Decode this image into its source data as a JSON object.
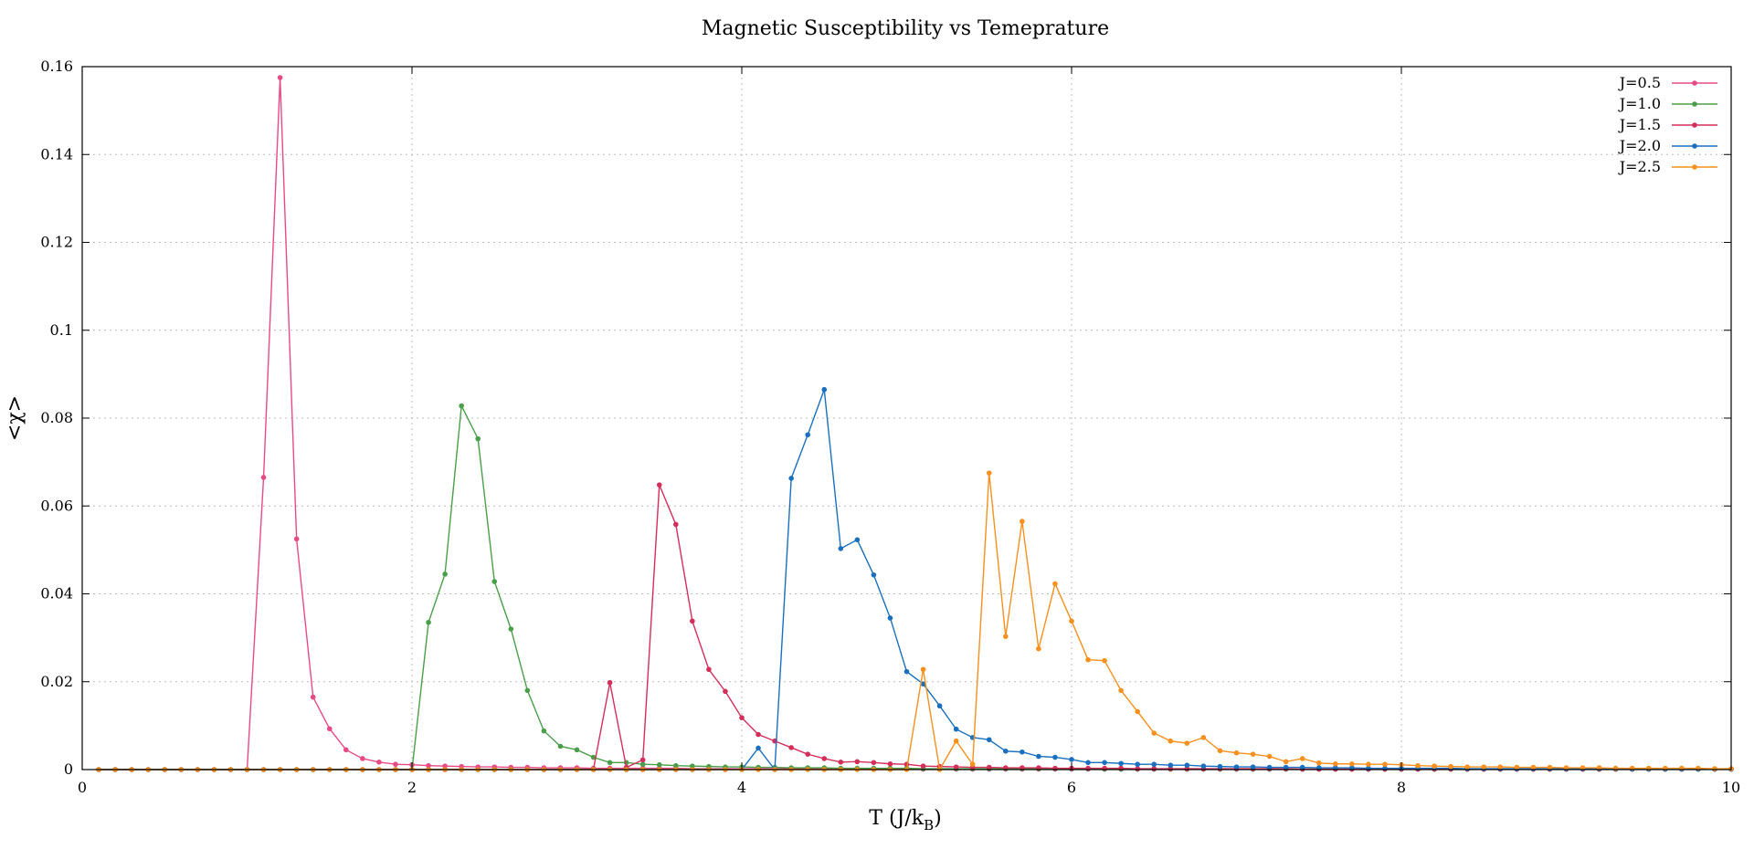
{
  "chart_data": {
    "type": "line",
    "title": "Magnetic Susceptibility vs Temeprature",
    "xlabel": {
      "main": "T (J/k",
      "sub": "B",
      "close": ")"
    },
    "ylabel": "<χ>",
    "xlim": [
      0,
      10
    ],
    "ylim": [
      0,
      0.16
    ],
    "xticks": [
      0,
      2,
      4,
      6,
      8,
      10
    ],
    "yticks": [
      0,
      0.02,
      0.04,
      0.06,
      0.08,
      0.1,
      0.12,
      0.14,
      0.16
    ],
    "grid": true,
    "legend_position": "top-right",
    "markers": "points",
    "series": [
      {
        "name": "J=0.5",
        "color": "#e84a86",
        "x": [
          0.1,
          0.2,
          0.3,
          0.4,
          0.5,
          0.6,
          0.7,
          0.8,
          0.9,
          1.0,
          1.1,
          1.2,
          1.3,
          1.4,
          1.5,
          1.6,
          1.7,
          1.8,
          1.9,
          2.0,
          2.1,
          2.2,
          2.3,
          2.4,
          2.5,
          2.6,
          2.7,
          2.8,
          2.9,
          3.0,
          3.1,
          3.2,
          3.3,
          3.4,
          3.5,
          3.6,
          3.7,
          3.8,
          3.9,
          4.0,
          4.1,
          4.2,
          4.3,
          4.4,
          4.5,
          4.6,
          4.7,
          4.8,
          4.9,
          5.0,
          5.1,
          5.2,
          5.3,
          5.4,
          5.5,
          5.6,
          5.7,
          5.8,
          5.9,
          6.0,
          6.1,
          6.2,
          6.3,
          6.4,
          6.5,
          6.6,
          6.7,
          6.8,
          6.9,
          7.0,
          7.1,
          7.2,
          7.3,
          7.4,
          7.5,
          7.6,
          7.7,
          7.8,
          7.9,
          8.0,
          8.1,
          8.2,
          8.3,
          8.4,
          8.5,
          8.6,
          8.7,
          8.8,
          8.9,
          9.0,
          9.1,
          9.2,
          9.3,
          9.4,
          9.5,
          9.6,
          9.7,
          9.8,
          9.9,
          10.0
        ],
        "y": [
          0,
          0,
          0,
          0,
          0,
          0,
          0,
          0,
          0,
          0,
          0.0665,
          0.1575,
          0.0525,
          0.0165,
          0.0093,
          0.0045,
          0.0025,
          0.0017,
          0.0012,
          0.0011,
          0.0009,
          0.0008,
          0.0007,
          0.0006,
          0.0006,
          0.0005,
          0.0005,
          0.0004,
          0.0004,
          0.0004,
          0.0003,
          0.0003,
          0.0003,
          0.0003,
          0.0003,
          0.0003,
          0.0002,
          0.0002,
          0.0002,
          0.0002,
          0.0002,
          0.0002,
          0.0002,
          0.0002,
          0.0002,
          0.0002,
          0.0002,
          0.0001,
          0.0001,
          0.0001,
          0.0001,
          0.0001,
          0.0001,
          0.0001,
          0.0001,
          0.0001,
          0.0001,
          0.0001,
          0.0001,
          0.0001,
          0.0001,
          0.0001,
          0.0001,
          0.0001,
          0.0001,
          0.0001,
          0.0001,
          0.0001,
          0.0001,
          0.0001,
          0.0001,
          0.0001,
          0.0001,
          0.0001,
          0.0001,
          0.0001,
          0.0001,
          0.0001,
          0.0001,
          0.0001,
          0.0001,
          0.0001,
          0.0001,
          0.0001,
          0.0001,
          0.0001,
          0.0001,
          0.0001,
          0.0001,
          0.0001,
          0.0001,
          0.0001,
          0.0001,
          0.0001,
          0.0001,
          0.0001,
          0.0001,
          0.0001,
          0.0001,
          0.0001
        ]
      },
      {
        "name": "J=1.0",
        "color": "#4a9e4a",
        "x": [
          0.1,
          0.2,
          0.3,
          0.4,
          0.5,
          0.6,
          0.7,
          0.8,
          0.9,
          1.0,
          1.1,
          1.2,
          1.3,
          1.4,
          1.5,
          1.6,
          1.7,
          1.8,
          1.9,
          2.0,
          2.1,
          2.2,
          2.3,
          2.4,
          2.5,
          2.6,
          2.7,
          2.8,
          2.9,
          3.0,
          3.1,
          3.2,
          3.3,
          3.4,
          3.5,
          3.6,
          3.7,
          3.8,
          3.9,
          4.0,
          4.1,
          4.2,
          4.3,
          4.4,
          4.5,
          4.6,
          4.7,
          4.8,
          4.9,
          5.0,
          5.1,
          5.2,
          5.3,
          5.4,
          5.5,
          5.6,
          5.7,
          5.8,
          5.9,
          6.0,
          6.1,
          6.2,
          6.3,
          6.4,
          6.5,
          6.6,
          6.7,
          6.8,
          6.9,
          7.0,
          7.1,
          7.2,
          7.3,
          7.4,
          7.5,
          7.6,
          7.7,
          7.8,
          7.9,
          8.0,
          8.1,
          8.2,
          8.3,
          8.4,
          8.5,
          8.6,
          8.7,
          8.8,
          8.9,
          9.0,
          9.1,
          9.2,
          9.3,
          9.4,
          9.5,
          9.6,
          9.7,
          9.8,
          9.9,
          10.0
        ],
        "y": [
          0,
          0,
          0,
          0,
          0,
          0,
          0,
          0,
          0,
          0,
          0,
          0,
          0,
          0,
          0,
          0,
          0,
          0,
          0,
          0,
          0.0335,
          0.0445,
          0.0828,
          0.0753,
          0.0428,
          0.032,
          0.018,
          0.0088,
          0.0053,
          0.0045,
          0.0028,
          0.0016,
          0.0016,
          0.0012,
          0.0011,
          0.0009,
          0.0008,
          0.0007,
          0.0006,
          0.0006,
          0.0005,
          0.0005,
          0.0004,
          0.0004,
          0.0004,
          0.0003,
          0.0003,
          0.0003,
          0.0003,
          0.0003,
          0.0002,
          0.0002,
          0.0002,
          0.0002,
          0.0002,
          0.0002,
          0.0002,
          0.0002,
          0.0002,
          0.0002,
          0.0002,
          0.0001,
          0.0001,
          0.0001,
          0.0001,
          0.0001,
          0.0001,
          0.0001,
          0.0001,
          0.0001,
          0.0001,
          0.0001,
          0.0001,
          0.0001,
          0.0001,
          0.0001,
          0.0001,
          0.0001,
          0.0001,
          0.0001,
          0.0001,
          0.0001,
          0.0001,
          0.0001,
          0.0001,
          0.0001,
          0.0001,
          0.0001,
          0.0001,
          0.0001,
          0.0001,
          0.0001,
          0.0001,
          0.0001,
          0.0001,
          0.0001,
          0.0001,
          0.0001,
          0.0001,
          0.0001
        ]
      },
      {
        "name": "J=1.5",
        "color": "#d42e5a",
        "x": [
          0.1,
          0.2,
          0.3,
          0.4,
          0.5,
          0.6,
          0.7,
          0.8,
          0.9,
          1.0,
          1.1,
          1.2,
          1.3,
          1.4,
          1.5,
          1.6,
          1.7,
          1.8,
          1.9,
          2.0,
          2.1,
          2.2,
          2.3,
          2.4,
          2.5,
          2.6,
          2.7,
          2.8,
          2.9,
          3.0,
          3.1,
          3.2,
          3.3,
          3.4,
          3.5,
          3.6,
          3.7,
          3.8,
          3.9,
          4.0,
          4.1,
          4.2,
          4.3,
          4.4,
          4.5,
          4.6,
          4.7,
          4.8,
          4.9,
          5.0,
          5.1,
          5.2,
          5.3,
          5.4,
          5.5,
          5.6,
          5.7,
          5.8,
          5.9,
          6.0,
          6.1,
          6.2,
          6.3,
          6.4,
          6.5,
          6.6,
          6.7,
          6.8,
          6.9,
          7.0,
          7.1,
          7.2,
          7.3,
          7.4,
          7.5,
          7.6,
          7.7,
          7.8,
          7.9,
          8.0,
          8.1,
          8.2,
          8.3,
          8.4,
          8.5,
          8.6,
          8.7,
          8.8,
          8.9,
          9.0,
          9.1,
          9.2,
          9.3,
          9.4,
          9.5,
          9.6,
          9.7,
          9.8,
          9.9,
          10.0
        ],
        "y": [
          0,
          0,
          0,
          0,
          0,
          0,
          0,
          0,
          0,
          0,
          0,
          0,
          0,
          0,
          0,
          0,
          0,
          0,
          0,
          0,
          0,
          0,
          0,
          0,
          0,
          0,
          0,
          0,
          0,
          0,
          0,
          0.0198,
          0.0005,
          0.0022,
          0.0648,
          0.0558,
          0.0338,
          0.0228,
          0.0178,
          0.0118,
          0.008,
          0.0065,
          0.005,
          0.0035,
          0.0025,
          0.0017,
          0.0018,
          0.0016,
          0.0013,
          0.0012,
          0.0008,
          0.0007,
          0.0006,
          0.0005,
          0.0005,
          0.0004,
          0.0004,
          0.0004,
          0.0003,
          0.0003,
          0.0003,
          0.0003,
          0.0003,
          0.0002,
          0.0002,
          0.0002,
          0.0002,
          0.0002,
          0.0002,
          0.0002,
          0.0002,
          0.0002,
          0.0002,
          0.0001,
          0.0001,
          0.0001,
          0.0001,
          0.0001,
          0.0001,
          0.0001,
          0.0001,
          0.0001,
          0.0001,
          0.0001,
          0.0001,
          0.0001,
          0.0001,
          0.0001,
          0.0001,
          0.0001,
          0.0001,
          0.0001,
          0.0001,
          0.0001,
          0.0001,
          0.0001,
          0.0001,
          0.0001,
          0.0001,
          0.0001
        ]
      },
      {
        "name": "J=2.0",
        "color": "#1a6fbe",
        "x": [
          0.1,
          0.2,
          0.3,
          0.4,
          0.5,
          0.6,
          0.7,
          0.8,
          0.9,
          1.0,
          1.1,
          1.2,
          1.3,
          1.4,
          1.5,
          1.6,
          1.7,
          1.8,
          1.9,
          2.0,
          2.1,
          2.2,
          2.3,
          2.4,
          2.5,
          2.6,
          2.7,
          2.8,
          2.9,
          3.0,
          3.1,
          3.2,
          3.3,
          3.4,
          3.5,
          3.6,
          3.7,
          3.8,
          3.9,
          4.0,
          4.1,
          4.2,
          4.3,
          4.4,
          4.5,
          4.6,
          4.7,
          4.8,
          4.9,
          5.0,
          5.1,
          5.2,
          5.3,
          5.4,
          5.5,
          5.6,
          5.7,
          5.8,
          5.9,
          6.0,
          6.1,
          6.2,
          6.3,
          6.4,
          6.5,
          6.6,
          6.7,
          6.8,
          6.9,
          7.0,
          7.1,
          7.2,
          7.3,
          7.4,
          7.5,
          7.6,
          7.7,
          7.8,
          7.9,
          8.0,
          8.1,
          8.2,
          8.3,
          8.4,
          8.5,
          8.6,
          8.7,
          8.8,
          8.9,
          9.0,
          9.1,
          9.2,
          9.3,
          9.4,
          9.5,
          9.6,
          9.7,
          9.8,
          9.9,
          10.0
        ],
        "y": [
          0,
          0,
          0,
          0,
          0,
          0,
          0,
          0,
          0,
          0,
          0,
          0,
          0,
          0,
          0,
          0,
          0,
          0,
          0,
          0,
          0,
          0,
          0,
          0,
          0,
          0,
          0,
          0,
          0,
          0,
          0,
          0,
          0,
          0,
          0,
          0,
          0,
          0,
          0,
          0,
          0.0049,
          0,
          0.0663,
          0.0762,
          0.0865,
          0.0503,
          0.0523,
          0.0443,
          0.0345,
          0.0223,
          0.0195,
          0.0145,
          0.0092,
          0.0073,
          0.0068,
          0.0042,
          0.004,
          0.003,
          0.0028,
          0.0023,
          0.0016,
          0.0016,
          0.0014,
          0.0012,
          0.0012,
          0.001,
          0.001,
          0.0008,
          0.0007,
          0.0006,
          0.0006,
          0.0005,
          0.0005,
          0.0005,
          0.0004,
          0.0004,
          0.0004,
          0.0003,
          0.0003,
          0.0003,
          0.0003,
          0.0003,
          0.0003,
          0.0002,
          0.0002,
          0.0002,
          0.0002,
          0.0002,
          0.0002,
          0.0002,
          0.0002,
          0.0002,
          0.0002,
          0.0001,
          0.0001,
          0.0001,
          0.0001,
          0.0001,
          0.0001,
          0.0001
        ]
      },
      {
        "name": "J=2.5",
        "color": "#f7901e",
        "x": [
          0.1,
          0.2,
          0.3,
          0.4,
          0.5,
          0.6,
          0.7,
          0.8,
          0.9,
          1.0,
          1.1,
          1.2,
          1.3,
          1.4,
          1.5,
          1.6,
          1.7,
          1.8,
          1.9,
          2.0,
          2.1,
          2.2,
          2.3,
          2.4,
          2.5,
          2.6,
          2.7,
          2.8,
          2.9,
          3.0,
          3.1,
          3.2,
          3.3,
          3.4,
          3.5,
          3.6,
          3.7,
          3.8,
          3.9,
          4.0,
          4.1,
          4.2,
          4.3,
          4.4,
          4.5,
          4.6,
          4.7,
          4.8,
          4.9,
          5.0,
          5.1,
          5.2,
          5.3,
          5.4,
          5.5,
          5.6,
          5.7,
          5.8,
          5.9,
          6.0,
          6.1,
          6.2,
          6.3,
          6.4,
          6.5,
          6.6,
          6.7,
          6.8,
          6.9,
          7.0,
          7.1,
          7.2,
          7.3,
          7.4,
          7.5,
          7.6,
          7.7,
          7.8,
          7.9,
          8.0,
          8.1,
          8.2,
          8.3,
          8.4,
          8.5,
          8.6,
          8.7,
          8.8,
          8.9,
          9.0,
          9.1,
          9.2,
          9.3,
          9.4,
          9.5,
          9.6,
          9.7,
          9.8,
          9.9,
          10.0
        ],
        "y": [
          0,
          0,
          0,
          0,
          0,
          0,
          0,
          0,
          0,
          0,
          0,
          0,
          0,
          0,
          0,
          0,
          0,
          0,
          0,
          0,
          0,
          0,
          0,
          0,
          0,
          0,
          0,
          0,
          0,
          0,
          0,
          0,
          0,
          0,
          0,
          0,
          0,
          0,
          0,
          0,
          0,
          0,
          0,
          0,
          0,
          0,
          0,
          0,
          0,
          0,
          0.0228,
          0,
          0.0065,
          0.0012,
          0.0675,
          0.0303,
          0.0565,
          0.0275,
          0.0423,
          0.0338,
          0.025,
          0.0248,
          0.018,
          0.0132,
          0.0083,
          0.0065,
          0.006,
          0.0073,
          0.0043,
          0.0038,
          0.0035,
          0.003,
          0.0018,
          0.0025,
          0.0015,
          0.0013,
          0.0013,
          0.0012,
          0.0012,
          0.0011,
          0.0009,
          0.0008,
          0.0007,
          0.0006,
          0.0006,
          0.0006,
          0.0005,
          0.0005,
          0.0005,
          0.0004,
          0.0004,
          0.0004,
          0.0003,
          0.0003,
          0.0003,
          0.0003,
          0.0003,
          0.0003,
          0.0002,
          0.0002
        ]
      }
    ]
  }
}
